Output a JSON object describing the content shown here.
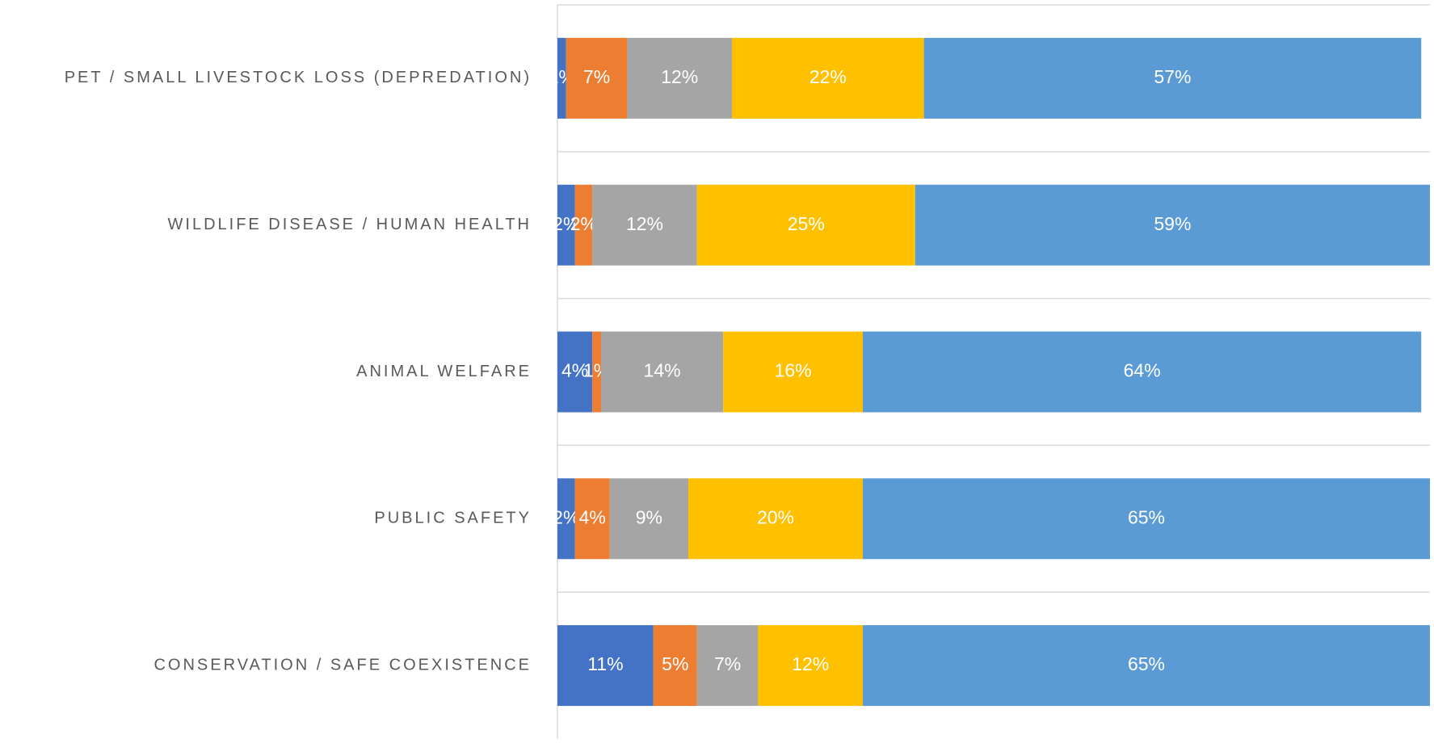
{
  "chart_data": {
    "type": "stacked-bar-horizontal",
    "categories": [
      "PET / SMALL LIVESTOCK LOSS (DEPREDATION)",
      "WILDLIFE DISEASE / HUMAN HEALTH",
      "ANIMAL WELFARE",
      "PUBLIC SAFETY",
      "CONSERVATION / SAFE COEXISTENCE"
    ],
    "xlim": [
      0,
      100
    ],
    "grid": true,
    "series": [
      {
        "color": "#4472c4",
        "values": [
          1,
          2,
          4,
          2,
          11
        ],
        "value_labels": [
          "1%",
          "2%",
          "4%",
          "2%",
          "11%"
        ]
      },
      {
        "color": "#ed7d31",
        "values": [
          7,
          2,
          1,
          4,
          5
        ],
        "value_labels": [
          "7%",
          "2%",
          "1%",
          "4%",
          "5%"
        ]
      },
      {
        "color": "#a5a5a5",
        "values": [
          12,
          12,
          14,
          9,
          7
        ],
        "value_labels": [
          "12%",
          "12%",
          "14%",
          "9%",
          "7%"
        ]
      },
      {
        "color": "#ffc000",
        "values": [
          22,
          25,
          16,
          20,
          12
        ],
        "value_labels": [
          "22%",
          "25%",
          "16%",
          "20%",
          "12%"
        ]
      },
      {
        "color": "#5b9bd5",
        "values": [
          57,
          59,
          64,
          65,
          65
        ],
        "value_labels": [
          "57%",
          "59%",
          "64%",
          "65%",
          "65%"
        ]
      }
    ]
  }
}
